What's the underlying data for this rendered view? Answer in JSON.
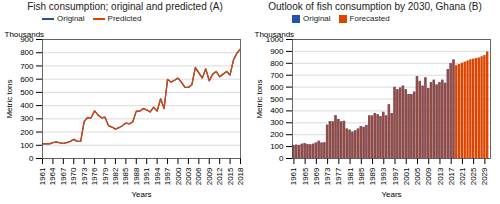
{
  "chart_data": [
    {
      "type": "line",
      "title": "Fish consumption; original and predicted (A)",
      "xlabel": "Years",
      "ylabel": "Metric tons",
      "annotation": "Thousands",
      "x": [
        1961,
        1962,
        1963,
        1964,
        1965,
        1966,
        1967,
        1968,
        1969,
        1970,
        1971,
        1972,
        1973,
        1974,
        1975,
        1976,
        1977,
        1978,
        1979,
        1980,
        1981,
        1982,
        1983,
        1984,
        1985,
        1986,
        1987,
        1988,
        1989,
        1990,
        1991,
        1992,
        1993,
        1994,
        1995,
        1996,
        1997,
        1998,
        1999,
        2000,
        2001,
        2002,
        2003,
        2004,
        2005,
        2006,
        2007,
        2008,
        2009,
        2010,
        2011,
        2012,
        2013,
        2014,
        2015,
        2016,
        2017,
        2018
      ],
      "series": [
        {
          "name": "Original",
          "color": "#2255AA",
          "values": [
            110,
            112,
            110,
            120,
            125,
            118,
            115,
            120,
            130,
            145,
            130,
            132,
            280,
            310,
            308,
            360,
            328,
            308,
            312,
            248,
            238,
            222,
            233,
            248,
            268,
            262,
            278,
            358,
            358,
            378,
            368,
            352,
            388,
            358,
            452,
            378,
            598,
            578,
            592,
            608,
            578,
            538,
            538,
            558,
            688,
            648,
            608,
            678,
            588,
            638,
            658,
            618,
            638,
            658,
            632,
            748,
            798,
            828
          ]
        },
        {
          "name": "Predicted",
          "color": "#DD4400",
          "values": [
            110,
            112,
            110,
            120,
            125,
            118,
            115,
            120,
            130,
            145,
            130,
            132,
            280,
            310,
            308,
            360,
            328,
            308,
            312,
            248,
            238,
            222,
            233,
            248,
            268,
            262,
            278,
            358,
            358,
            378,
            368,
            352,
            388,
            358,
            452,
            378,
            598,
            578,
            592,
            608,
            578,
            538,
            538,
            558,
            688,
            648,
            608,
            678,
            588,
            638,
            658,
            618,
            638,
            658,
            632,
            748,
            798,
            828
          ]
        }
      ],
      "xlim": [
        1961,
        2018
      ],
      "xticks": [
        1961,
        1964,
        1967,
        1970,
        1973,
        1976,
        1979,
        1982,
        1985,
        1988,
        1991,
        1994,
        1997,
        2000,
        2003,
        2006,
        2009,
        2012,
        2015,
        2018
      ],
      "ylim": [
        0,
        900
      ],
      "yticks": [
        0,
        100,
        200,
        300,
        400,
        500,
        600,
        700,
        800,
        900
      ],
      "grid": true,
      "legend": "upper left"
    },
    {
      "type": "bar",
      "title": "Outlook of fish consumption by 2030, Ghana (B)",
      "xlabel": "Years",
      "ylabel": "Metric tons",
      "annotation": "Thousands",
      "x": [
        1961,
        1962,
        1963,
        1964,
        1965,
        1966,
        1967,
        1968,
        1969,
        1970,
        1971,
        1972,
        1973,
        1974,
        1975,
        1976,
        1977,
        1978,
        1979,
        1980,
        1981,
        1982,
        1983,
        1984,
        1985,
        1986,
        1987,
        1988,
        1989,
        1990,
        1991,
        1992,
        1993,
        1994,
        1995,
        1996,
        1997,
        1998,
        1999,
        2000,
        2001,
        2002,
        2003,
        2004,
        2005,
        2006,
        2007,
        2008,
        2009,
        2010,
        2011,
        2012,
        2013,
        2014,
        2015,
        2016,
        2017,
        2018,
        2019,
        2020,
        2021,
        2022,
        2023,
        2024,
        2025,
        2026,
        2027,
        2028,
        2029,
        2030
      ],
      "series": [
        {
          "name": "Original",
          "color": "#2255AA",
          "values": [
            110,
            112,
            110,
            120,
            125,
            118,
            115,
            120,
            130,
            145,
            130,
            132,
            280,
            310,
            308,
            360,
            328,
            308,
            312,
            248,
            238,
            222,
            233,
            248,
            268,
            262,
            278,
            358,
            358,
            378,
            368,
            352,
            388,
            358,
            452,
            378,
            598,
            578,
            592,
            608,
            578,
            538,
            538,
            558,
            688,
            648,
            608,
            678,
            588,
            638,
            658,
            618,
            638,
            658,
            632,
            748,
            798,
            828,
            null,
            null,
            null,
            null,
            null,
            null,
            null,
            null,
            null,
            null,
            null,
            null
          ]
        },
        {
          "color": "#DD4400",
          "values": [
            110,
            112,
            110,
            120,
            125,
            118,
            115,
            120,
            130,
            145,
            130,
            132,
            280,
            310,
            308,
            360,
            328,
            308,
            312,
            248,
            238,
            222,
            233,
            248,
            268,
            262,
            278,
            358,
            358,
            378,
            368,
            352,
            388,
            358,
            452,
            378,
            598,
            578,
            592,
            608,
            578,
            538,
            538,
            558,
            688,
            648,
            608,
            678,
            588,
            638,
            658,
            618,
            638,
            658,
            632,
            748,
            798,
            828,
            null,
            null,
            null,
            null,
            null,
            null,
            null,
            null,
            null,
            null,
            null,
            null
          ]
        },
        {
          "name": "Forecasted",
          "color": "#DD4400",
          "values": [
            null,
            null,
            null,
            null,
            null,
            null,
            null,
            null,
            null,
            null,
            null,
            null,
            null,
            null,
            null,
            null,
            null,
            null,
            null,
            null,
            null,
            null,
            null,
            null,
            null,
            null,
            null,
            null,
            null,
            null,
            null,
            null,
            null,
            null,
            null,
            null,
            null,
            null,
            null,
            null,
            null,
            null,
            null,
            null,
            null,
            null,
            null,
            null,
            null,
            null,
            null,
            null,
            null,
            null,
            null,
            null,
            null,
            null,
            780,
            790,
            800,
            810,
            820,
            830,
            835,
            840,
            845,
            855,
            865,
            895
          ]
        }
      ],
      "xlim": [
        1960.5,
        2031
      ],
      "xticks": [
        1961,
        1965,
        1969,
        1973,
        1977,
        1981,
        1985,
        1989,
        1993,
        1997,
        2001,
        2005,
        2009,
        2013,
        2017,
        2021,
        2025,
        2029
      ],
      "ylim": [
        0,
        1000
      ],
      "yticks": [
        0,
        100,
        200,
        300,
        400,
        500,
        600,
        700,
        800,
        900,
        1000
      ],
      "grid": true,
      "legend": "upper left"
    }
  ]
}
